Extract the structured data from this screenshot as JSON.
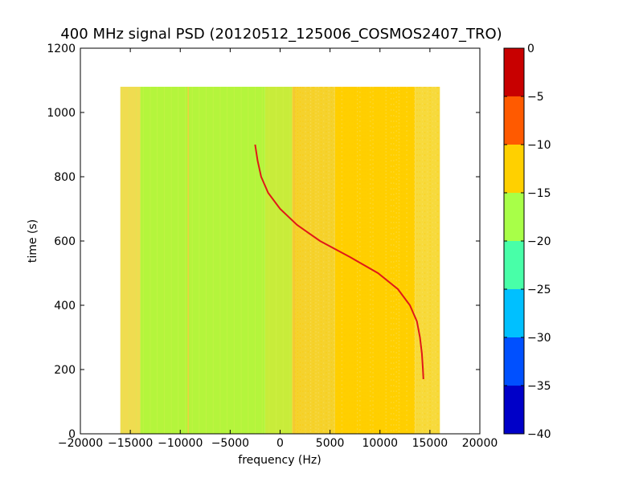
{
  "chart_data": {
    "type": "heatmap",
    "title": "400 MHz signal PSD (20120512_125006_COSMOS2407_TRO)",
    "xlabel": "frequency (Hz)",
    "ylabel": "time (s)",
    "xlim": [
      -20000,
      20000
    ],
    "ylim": [
      0,
      1200
    ],
    "x_ticks": [
      -20000,
      -15000,
      -10000,
      -5000,
      0,
      5000,
      10000,
      15000,
      20000
    ],
    "x_tick_labels": [
      "−20000",
      "−15000",
      "−10000",
      "−5000",
      "0",
      "5000",
      "10000",
      "15000",
      "20000"
    ],
    "y_ticks": [
      0,
      200,
      400,
      600,
      800,
      1000,
      1200
    ],
    "y_tick_labels": [
      "0",
      "200",
      "400",
      "600",
      "800",
      "1000",
      "1200"
    ],
    "data_extent": {
      "x": [
        -16000,
        16000
      ],
      "y": [
        0,
        1080
      ]
    },
    "background_bands": [
      {
        "x": [
          -16000,
          -14000
        ],
        "level_db": -13,
        "color": "#f0dc50"
      },
      {
        "x": [
          -14000,
          -1500
        ],
        "level_db": -17,
        "color": "#b4f53c"
      },
      {
        "x": [
          -1500,
          1200
        ],
        "level_db": -16,
        "color": "#c8ec3a"
      },
      {
        "x": [
          1200,
          5500
        ],
        "level_db": -13,
        "color": "#f5d22d"
      },
      {
        "x": [
          5500,
          13500
        ],
        "level_db": -11,
        "color": "#ffcf00"
      },
      {
        "x": [
          13500,
          16000
        ],
        "level_db": -12,
        "color": "#f7da3c"
      }
    ],
    "vertical_lines": [
      {
        "x": -9200,
        "color": "#f0d040"
      },
      {
        "x": 1400,
        "color": "#f3c43a"
      }
    ],
    "signal_trace": {
      "color": "#e01818",
      "points": [
        {
          "x": -2500,
          "y": 900
        },
        {
          "x": -2250,
          "y": 850
        },
        {
          "x": -1900,
          "y": 800
        },
        {
          "x": -1200,
          "y": 750
        },
        {
          "x": 0,
          "y": 700
        },
        {
          "x": 1700,
          "y": 650
        },
        {
          "x": 4000,
          "y": 600
        },
        {
          "x": 7000,
          "y": 550
        },
        {
          "x": 9800,
          "y": 500
        },
        {
          "x": 11800,
          "y": 450
        },
        {
          "x": 13000,
          "y": 400
        },
        {
          "x": 13700,
          "y": 350
        },
        {
          "x": 14000,
          "y": 300
        },
        {
          "x": 14200,
          "y": 250
        },
        {
          "x": 14300,
          "y": 200
        },
        {
          "x": 14350,
          "y": 170
        }
      ]
    },
    "colorbar": {
      "range": [
        -40,
        0
      ],
      "ticks": [
        0,
        -5,
        -10,
        -15,
        -20,
        -25,
        -30,
        -35,
        -40
      ],
      "tick_labels": [
        "0",
        "−5",
        "−10",
        "−15",
        "−20",
        "−25",
        "−30",
        "−35",
        "−40"
      ],
      "segments": [
        {
          "from": -40,
          "to": -35,
          "color": "#0000c8"
        },
        {
          "from": -35,
          "to": -30,
          "color": "#0050ff"
        },
        {
          "from": -30,
          "to": -25,
          "color": "#00c0ff"
        },
        {
          "from": -25,
          "to": -20,
          "color": "#48ffa8"
        },
        {
          "from": -20,
          "to": -15,
          "color": "#a8ff48"
        },
        {
          "from": -15,
          "to": -10,
          "color": "#ffd000"
        },
        {
          "from": -10,
          "to": -5,
          "color": "#ff5a00"
        },
        {
          "from": -5,
          "to": 0,
          "color": "#c80000"
        }
      ]
    }
  }
}
